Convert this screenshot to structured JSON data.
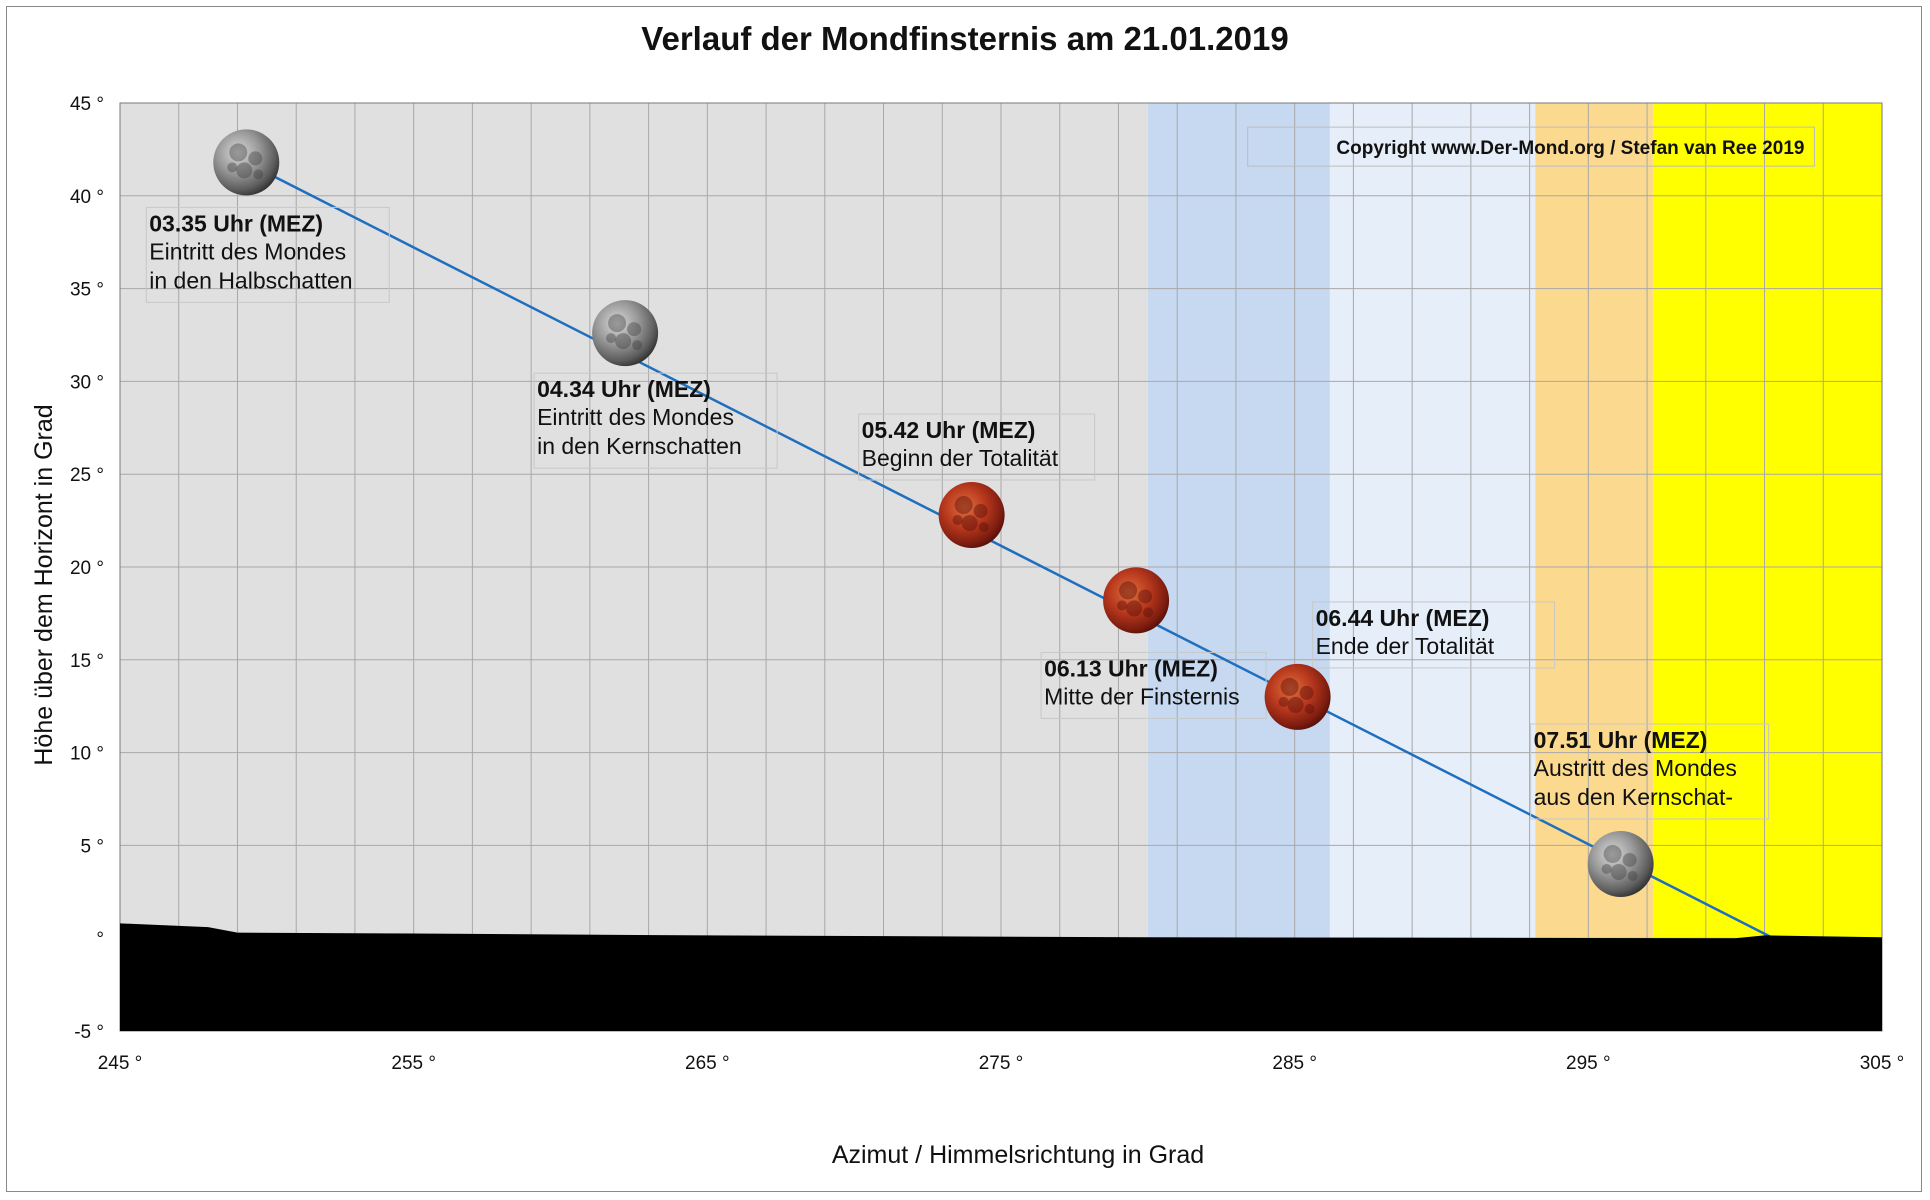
{
  "chart_data": {
    "type": "line",
    "title": "Verlauf der Mondfinsternis am 21.01.2019",
    "xlabel": "Azimut / Himmelsrichtung in Grad",
    "ylabel": "Höhe über dem Horizont in Grad",
    "copyright": "Copyright www.Der-Mond.org / Stefan van Ree 2019",
    "xlim": [
      245,
      305
    ],
    "ylim": [
      -5,
      45
    ],
    "x_ticks": [
      {
        "value": 245,
        "label": "245 °"
      },
      {
        "value": 255,
        "label": "255 °"
      },
      {
        "value": 265,
        "label": "265 °"
      },
      {
        "value": 275,
        "label": "275 °"
      },
      {
        "value": 285,
        "label": "285 °"
      },
      {
        "value": 295,
        "label": "295 °"
      },
      {
        "value": 305,
        "label": "305 °"
      }
    ],
    "y_ticks": [
      {
        "value": 45,
        "label": "45 °"
      },
      {
        "value": 40,
        "label": "40 °"
      },
      {
        "value": 35,
        "label": "35 °"
      },
      {
        "value": 30,
        "label": "30 °"
      },
      {
        "value": 25,
        "label": "25 °"
      },
      {
        "value": 20,
        "label": "20 °"
      },
      {
        "value": 15,
        "label": "15 °"
      },
      {
        "value": 10,
        "label": "10 °"
      },
      {
        "value": 5,
        "label": "5 °"
      },
      {
        "value": 0,
        "label": "°"
      },
      {
        "value": -5,
        "label": "-5 °"
      }
    ],
    "grid": true,
    "path": [
      {
        "x": 249.3,
        "y": 41.8
      },
      {
        "x": 301.3,
        "y": 0
      }
    ],
    "sky_bands": [
      {
        "from": 245,
        "to": 280.0,
        "color": "#e0e0e0"
      },
      {
        "from": 280.0,
        "to": 286.2,
        "color": "#c6d9f1"
      },
      {
        "from": 286.2,
        "to": 293.2,
        "color": "#e6eef9"
      },
      {
        "from": 293.2,
        "to": 297.2,
        "color": "#fbd98f"
      },
      {
        "from": 297.2,
        "to": 305,
        "color": "#ffff00"
      }
    ],
    "horizon": {
      "color": "#000000",
      "profile": [
        {
          "x": 245,
          "y": 0.8
        },
        {
          "x": 248,
          "y": 0.6
        },
        {
          "x": 249,
          "y": 0.3
        },
        {
          "x": 255,
          "y": 0.25
        },
        {
          "x": 265,
          "y": 0.15
        },
        {
          "x": 280,
          "y": 0.05
        },
        {
          "x": 300,
          "y": 0.0
        },
        {
          "x": 301,
          "y": 0.15
        },
        {
          "x": 305,
          "y": 0.05
        }
      ]
    },
    "events": [
      {
        "time": "03.35 Uhr (MEZ)",
        "lines": [
          "Eintritt des Mondes",
          "in den Halbschatten"
        ],
        "x": 249.3,
        "y": 41.8,
        "moon": "grey"
      },
      {
        "time": "04.34 Uhr (MEZ)",
        "lines": [
          "Eintritt des Mondes",
          "in den Kernschatten"
        ],
        "x": 262.2,
        "y": 32.6,
        "moon": "grey"
      },
      {
        "time": "05.42 Uhr (MEZ)",
        "lines": [
          "Beginn der Totalität"
        ],
        "x": 274.0,
        "y": 22.8,
        "moon": "red"
      },
      {
        "time": "06.13 Uhr (MEZ)",
        "lines": [
          "Mitte der Finsternis"
        ],
        "x": 279.6,
        "y": 18.2,
        "moon": "red"
      },
      {
        "time": "06.44 Uhr (MEZ)",
        "lines": [
          "Ende der Totalität"
        ],
        "x": 285.1,
        "y": 13.0,
        "moon": "red"
      },
      {
        "time": "07.51 Uhr (MEZ)",
        "lines": [
          "Austritt des Mondes",
          "aus den Kernschat-"
        ],
        "x": 296.1,
        "y": 4.0,
        "moon": "grey"
      }
    ]
  }
}
